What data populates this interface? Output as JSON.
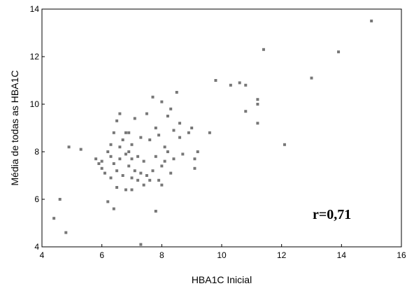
{
  "chart_data": {
    "type": "scatter",
    "xlabel": "HBA1C Inicial",
    "ylabel": "Média de todas as HBA1C",
    "xlim": [
      4,
      16
    ],
    "ylim": [
      4,
      14
    ],
    "xticks": [
      "4",
      "6",
      "8",
      "10",
      "12",
      "14",
      "16"
    ],
    "yticks": [
      "4",
      "6",
      "8",
      "10",
      "12",
      "14"
    ],
    "annotation": "r=0,71",
    "grid": false,
    "point_color": "#777777",
    "points": [
      {
        "x": 4.4,
        "y": 5.2
      },
      {
        "x": 4.6,
        "y": 6.0
      },
      {
        "x": 4.8,
        "y": 4.6
      },
      {
        "x": 4.9,
        "y": 8.2
      },
      {
        "x": 5.3,
        "y": 8.1
      },
      {
        "x": 5.8,
        "y": 7.7
      },
      {
        "x": 5.9,
        "y": 7.5
      },
      {
        "x": 6.0,
        "y": 7.6
      },
      {
        "x": 6.0,
        "y": 7.3
      },
      {
        "x": 6.1,
        "y": 7.1
      },
      {
        "x": 6.2,
        "y": 5.9
      },
      {
        "x": 6.2,
        "y": 8.0
      },
      {
        "x": 6.3,
        "y": 8.3
      },
      {
        "x": 6.3,
        "y": 7.8
      },
      {
        "x": 6.3,
        "y": 6.9
      },
      {
        "x": 6.4,
        "y": 5.6
      },
      {
        "x": 6.4,
        "y": 7.5
      },
      {
        "x": 6.4,
        "y": 8.8
      },
      {
        "x": 6.5,
        "y": 9.3
      },
      {
        "x": 6.5,
        "y": 6.5
      },
      {
        "x": 6.5,
        "y": 7.2
      },
      {
        "x": 6.6,
        "y": 9.6
      },
      {
        "x": 6.6,
        "y": 8.2
      },
      {
        "x": 6.6,
        "y": 7.7
      },
      {
        "x": 6.7,
        "y": 7.0
      },
      {
        "x": 6.7,
        "y": 8.5
      },
      {
        "x": 6.8,
        "y": 8.8
      },
      {
        "x": 6.8,
        "y": 7.9
      },
      {
        "x": 6.8,
        "y": 6.4
      },
      {
        "x": 6.9,
        "y": 8.0
      },
      {
        "x": 6.9,
        "y": 7.4
      },
      {
        "x": 6.9,
        "y": 8.8
      },
      {
        "x": 7.0,
        "y": 6.9
      },
      {
        "x": 7.0,
        "y": 7.7
      },
      {
        "x": 7.0,
        "y": 8.3
      },
      {
        "x": 7.0,
        "y": 6.4
      },
      {
        "x": 7.1,
        "y": 7.2
      },
      {
        "x": 7.1,
        "y": 9.4
      },
      {
        "x": 7.2,
        "y": 7.8
      },
      {
        "x": 7.2,
        "y": 6.8
      },
      {
        "x": 7.3,
        "y": 7.1
      },
      {
        "x": 7.3,
        "y": 8.6
      },
      {
        "x": 7.3,
        "y": 4.1
      },
      {
        "x": 7.4,
        "y": 6.6
      },
      {
        "x": 7.4,
        "y": 7.6
      },
      {
        "x": 7.5,
        "y": 9.6
      },
      {
        "x": 7.5,
        "y": 7.0
      },
      {
        "x": 7.6,
        "y": 8.5
      },
      {
        "x": 7.6,
        "y": 6.8
      },
      {
        "x": 7.7,
        "y": 7.2
      },
      {
        "x": 7.7,
        "y": 10.3
      },
      {
        "x": 7.8,
        "y": 9.0
      },
      {
        "x": 7.8,
        "y": 7.8
      },
      {
        "x": 7.8,
        "y": 5.5
      },
      {
        "x": 7.9,
        "y": 8.7
      },
      {
        "x": 7.9,
        "y": 6.8
      },
      {
        "x": 8.0,
        "y": 10.1
      },
      {
        "x": 8.0,
        "y": 7.4
      },
      {
        "x": 8.0,
        "y": 6.6
      },
      {
        "x": 8.1,
        "y": 8.2
      },
      {
        "x": 8.1,
        "y": 7.6
      },
      {
        "x": 8.2,
        "y": 9.5
      },
      {
        "x": 8.2,
        "y": 8.0
      },
      {
        "x": 8.3,
        "y": 7.1
      },
      {
        "x": 8.3,
        "y": 9.8
      },
      {
        "x": 8.4,
        "y": 8.9
      },
      {
        "x": 8.4,
        "y": 7.7
      },
      {
        "x": 8.5,
        "y": 10.5
      },
      {
        "x": 8.6,
        "y": 8.6
      },
      {
        "x": 8.6,
        "y": 9.2
      },
      {
        "x": 8.7,
        "y": 7.9
      },
      {
        "x": 8.9,
        "y": 8.8
      },
      {
        "x": 9.0,
        "y": 9.0
      },
      {
        "x": 9.1,
        "y": 7.7
      },
      {
        "x": 9.1,
        "y": 7.3
      },
      {
        "x": 9.2,
        "y": 8.0
      },
      {
        "x": 9.6,
        "y": 8.8
      },
      {
        "x": 9.8,
        "y": 11.0
      },
      {
        "x": 10.3,
        "y": 10.8
      },
      {
        "x": 10.6,
        "y": 10.9
      },
      {
        "x": 10.8,
        "y": 10.8
      },
      {
        "x": 10.8,
        "y": 9.7
      },
      {
        "x": 11.2,
        "y": 10.2
      },
      {
        "x": 11.2,
        "y": 10.0
      },
      {
        "x": 11.2,
        "y": 9.2
      },
      {
        "x": 11.4,
        "y": 12.3
      },
      {
        "x": 12.1,
        "y": 8.3
      },
      {
        "x": 13.0,
        "y": 11.1
      },
      {
        "x": 13.9,
        "y": 12.2
      },
      {
        "x": 15.0,
        "y": 13.5
      }
    ]
  }
}
